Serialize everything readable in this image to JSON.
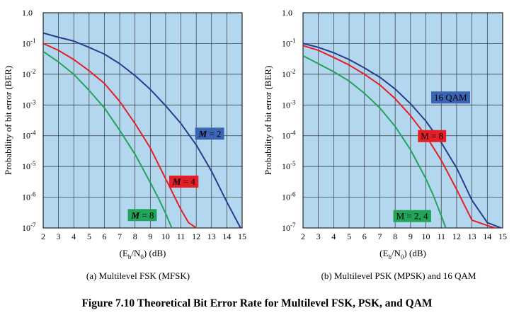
{
  "figure_title": "Figure 7.10  Theoretical Bit Error Rate for Multilevel FSK, PSK, and QAM",
  "colors": {
    "plot_bg": "#b4d7f0",
    "grid": "#333333",
    "blue": "#283c8c",
    "red": "#e41e26",
    "green": "#22a35a",
    "label_blue_bg": "#3c64b4",
    "label_red_bg": "#e41e26",
    "label_green_bg": "#22a35a"
  },
  "chart_data": [
    {
      "type": "line",
      "caption": "(a) Multilevel FSK (MFSK)",
      "xlabel": "(Eb/N0) (dB)",
      "ylabel": "Probability of bit error (BER)",
      "xlim": [
        2,
        15
      ],
      "ylim_log10": [
        -7,
        0
      ],
      "log_y": true,
      "grid": true,
      "x_ticks": [
        2,
        3,
        4,
        5,
        6,
        7,
        8,
        9,
        10,
        11,
        12,
        13,
        14,
        15
      ],
      "y_ticks": [
        {
          "base": "1.0",
          "exp": ""
        },
        {
          "base": "10",
          "exp": "-1"
        },
        {
          "base": "10",
          "exp": "-2"
        },
        {
          "base": "10",
          "exp": "-3"
        },
        {
          "base": "10",
          "exp": "-4"
        },
        {
          "base": "10",
          "exp": "-5"
        },
        {
          "base": "10",
          "exp": "-6"
        },
        {
          "base": "10",
          "exp": "-7"
        }
      ],
      "series": [
        {
          "name": "M = 2",
          "color": "#283c8c",
          "x": [
            2,
            3,
            4,
            5,
            6,
            7,
            8,
            9,
            10,
            11,
            12,
            13,
            14,
            14.9
          ],
          "y": [
            0.22,
            0.16,
            0.12,
            0.075,
            0.045,
            0.022,
            0.009,
            0.0032,
            0.00095,
            0.00025,
            5e-05,
            7e-06,
            7e-07,
            1e-07
          ]
        },
        {
          "name": "M = 4",
          "color": "#e41e26",
          "x": [
            2,
            3,
            4,
            5,
            6,
            7,
            8,
            9,
            10,
            11,
            11.5,
            12
          ],
          "y": [
            0.1,
            0.06,
            0.03,
            0.013,
            0.005,
            0.0013,
            0.00025,
            4e-05,
            4e-06,
            4e-07,
            1.5e-07,
            1e-07
          ]
        },
        {
          "name": "M = 8",
          "color": "#22a35a",
          "x": [
            2,
            3,
            4,
            5,
            6,
            7,
            8,
            9,
            9.5,
            10,
            10.4
          ],
          "y": [
            0.055,
            0.025,
            0.01,
            0.003,
            0.0008,
            0.00015,
            2.5e-05,
            3e-06,
            1e-06,
            3e-07,
            1e-07
          ]
        }
      ],
      "annotations": [
        {
          "series": "M = 2",
          "italic": "M",
          "text": " = 2",
          "bg": "#3c64b4",
          "x": 12.9,
          "y": 0.00012
        },
        {
          "series": "M = 4",
          "italic": "M",
          "text": " = 4",
          "bg": "#e41e26",
          "x": 11.2,
          "y": 3.3e-06
        },
        {
          "series": "M = 8",
          "italic": "M",
          "text": " = 8",
          "bg": "#22a35a",
          "x": 8.5,
          "y": 2.7e-07
        }
      ]
    },
    {
      "type": "line",
      "caption": "(b) Multilevel PSK (MPSK) and 16 QAM",
      "xlabel": "(Eb/N0) (dB)",
      "ylabel": "Probability of bit error (BER)",
      "xlim": [
        2,
        15
      ],
      "ylim_log10": [
        -7,
        0
      ],
      "log_y": true,
      "grid": true,
      "x_ticks": [
        2,
        3,
        4,
        5,
        6,
        7,
        8,
        9,
        10,
        11,
        12,
        13,
        14,
        15
      ],
      "y_ticks": [
        {
          "base": "1.0",
          "exp": ""
        },
        {
          "base": "10",
          "exp": "-1"
        },
        {
          "base": "10",
          "exp": "-2"
        },
        {
          "base": "10",
          "exp": "-3"
        },
        {
          "base": "10",
          "exp": "-4"
        },
        {
          "base": "10",
          "exp": "-5"
        },
        {
          "base": "10",
          "exp": "-6"
        },
        {
          "base": "10",
          "exp": "-7"
        }
      ],
      "series": [
        {
          "name": "16 QAM",
          "color": "#283c8c",
          "x": [
            2,
            3,
            4,
            5,
            6,
            7,
            8,
            9,
            10,
            11,
            12,
            13,
            14,
            14.9
          ],
          "y": [
            0.1,
            0.075,
            0.05,
            0.03,
            0.016,
            0.008,
            0.0033,
            0.0011,
            0.0003,
            6e-05,
            9e-06,
            8e-07,
            1.5e-07,
            1e-07
          ]
        },
        {
          "name": "M = 8",
          "color": "#e41e26",
          "x": [
            2,
            3,
            4,
            5,
            6,
            7,
            8,
            9,
            10,
            11,
            12,
            13,
            14,
            14.5
          ],
          "y": [
            0.085,
            0.06,
            0.035,
            0.02,
            0.01,
            0.0045,
            0.0016,
            0.00045,
            0.0001,
            1.6e-05,
            1.8e-06,
            1.8e-07,
            1.2e-07,
            1e-07
          ]
        },
        {
          "name": "M = 2, 4",
          "color": "#22a35a",
          "x": [
            2,
            3,
            4,
            5,
            6,
            7,
            8,
            9,
            10,
            10.5,
            11,
            11.3
          ],
          "y": [
            0.04,
            0.022,
            0.012,
            0.006,
            0.0024,
            0.0008,
            0.0002,
            3.5e-05,
            4e-06,
            1.1e-06,
            2.5e-07,
            1e-07
          ]
        }
      ],
      "annotations": [
        {
          "series": "16 QAM",
          "italic": "",
          "text": "16 QAM",
          "bg": "#3c64b4",
          "x": 11.6,
          "y": 0.0018
        },
        {
          "series": "M = 8",
          "italic": "",
          "text": "M = 8",
          "bg": "#e41e26",
          "x": 10.4,
          "y": 0.0001
        },
        {
          "series": "M = 2, 4",
          "italic": "",
          "text": "M = 2, 4",
          "bg": "#22a35a",
          "x": 9.1,
          "y": 2.5e-07
        }
      ]
    }
  ]
}
